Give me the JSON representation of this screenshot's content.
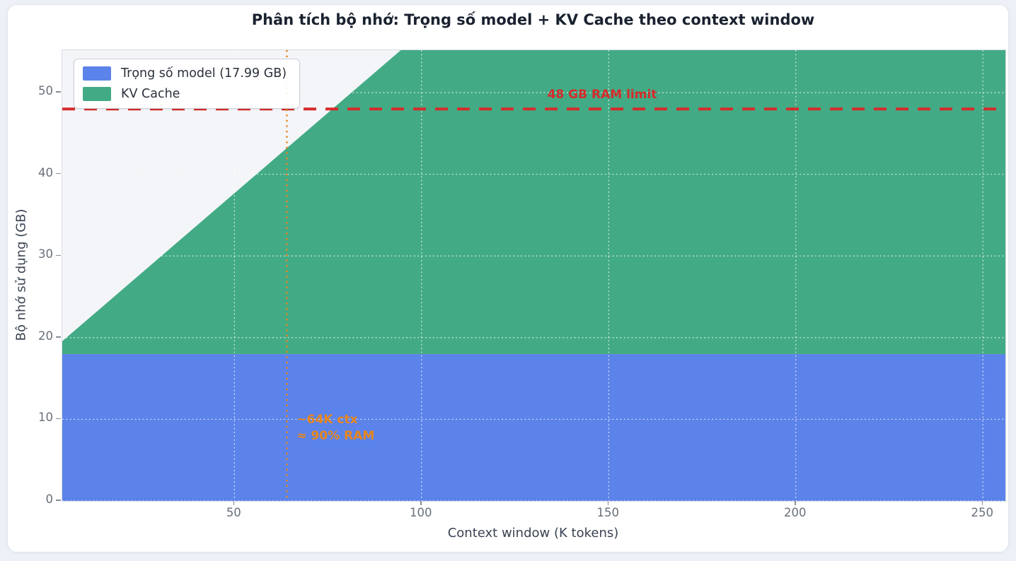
{
  "window": {
    "background": "#edf1f7",
    "card_background": "#ffffff",
    "card_border": "#e2e6ed"
  },
  "chart_data": {
    "type": "area",
    "title": "Phân tích bộ nhớ: Trọng số model + KV Cache theo context window",
    "xlabel": "Context window (K tokens)",
    "ylabel": "Bộ nhớ sử dụng (GB)",
    "xlim": [
      4,
      256
    ],
    "ylim": [
      0,
      55.2
    ],
    "x_ticks": [
      50,
      100,
      150,
      200,
      250
    ],
    "y_ticks": [
      0,
      10,
      20,
      30,
      40,
      50
    ],
    "grid": true,
    "grid_color": "rgba(255,255,255,0.75)",
    "plot_background": "#f4f5f8",
    "legend_position": "upper left",
    "x": [
      4,
      32,
      64,
      128,
      192,
      256
    ],
    "series": [
      {
        "name": "Trọng số model (17.99 GB)",
        "color": "#5b83ea",
        "constant_gb": 17.99,
        "values": [
          17.99,
          17.99,
          17.99,
          17.99,
          17.99,
          17.99
        ]
      },
      {
        "name": "KV Cache",
        "color": "#42ab85",
        "gb_per_k_token": 0.3939,
        "values": [
          1.58,
          12.61,
          25.21,
          50.42,
          75.63,
          100.85
        ]
      }
    ],
    "stacked_total_gb": [
      19.57,
      30.6,
      43.2,
      68.41,
      93.62,
      118.84
    ],
    "annotations": {
      "ram_limit": {
        "label": "48 GB RAM limit",
        "value_gb": 48,
        "color": "#d62b2b",
        "line_style": "dashed"
      },
      "ctx_marker": {
        "label_line1": "~64K ctx",
        "label_line2": "≈ 90% RAM",
        "value_k_tokens": 64,
        "ram_fraction": 0.9,
        "color": "#e8861d",
        "line_style": "dotted"
      }
    }
  }
}
